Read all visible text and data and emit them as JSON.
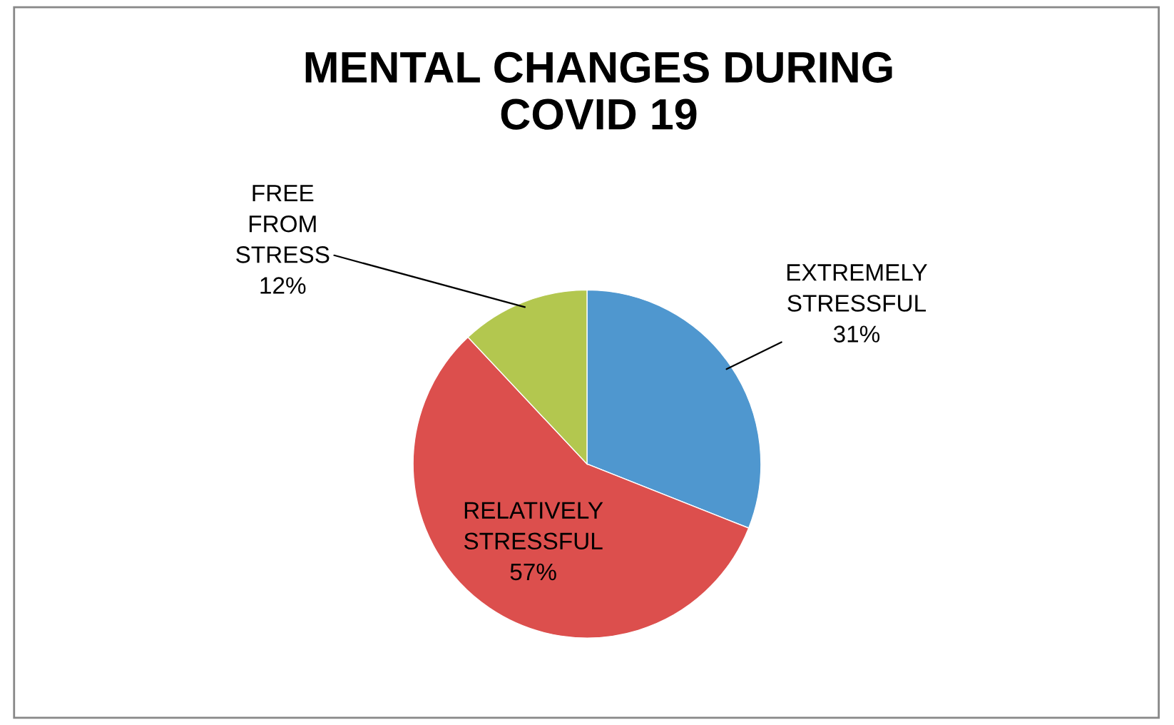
{
  "chart_data": {
    "type": "pie",
    "title": "MENTAL CHANGES DURING\nCOVID 19",
    "categories": [
      "EXTREMELY STRESSFUL",
      "RELATIVELY STRESSFUL",
      "FREE FROM STRESS"
    ],
    "values": [
      31,
      57,
      12
    ],
    "colors": [
      "#4f97cf",
      "#dc4f4d",
      "#b3c74f"
    ],
    "value_labels": [
      "31%",
      "57%",
      "12%"
    ]
  }
}
